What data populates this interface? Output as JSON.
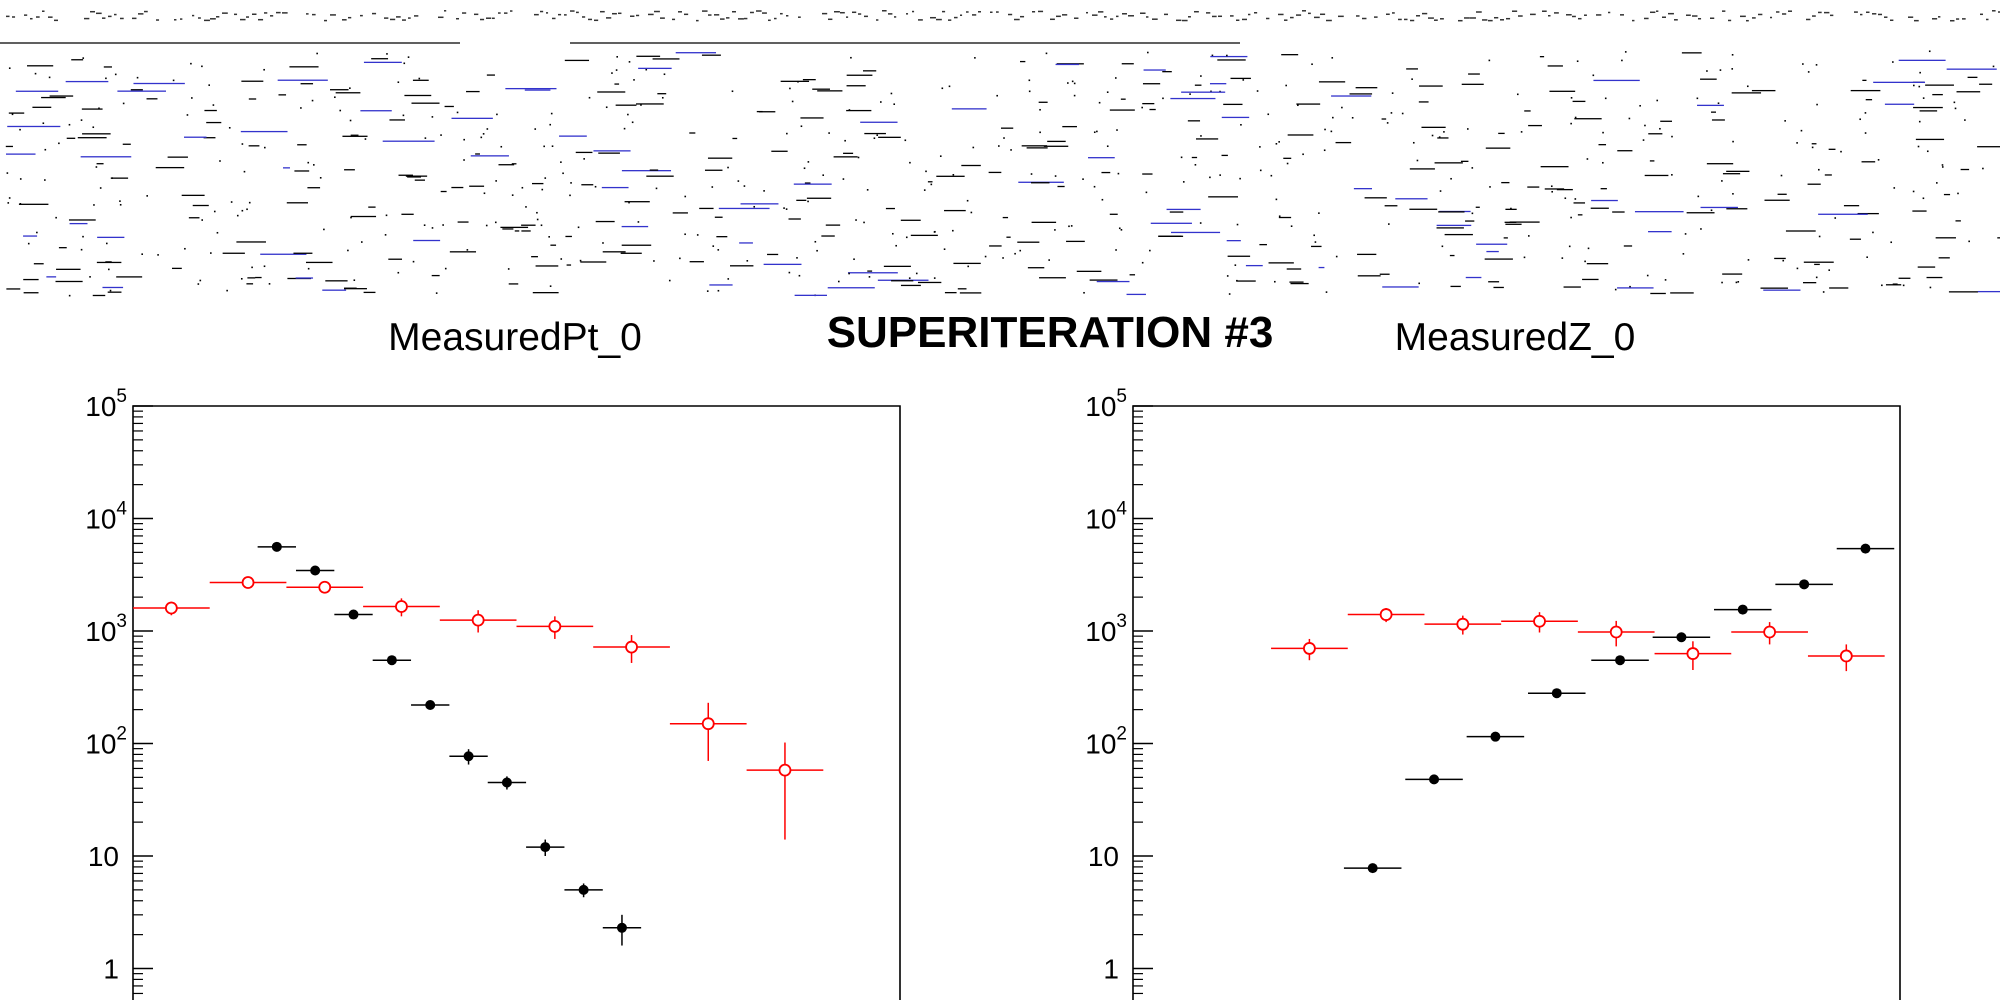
{
  "page_title": "SUPERITERATION #3",
  "colors": {
    "reco": "#000000",
    "measured": "#ff0000",
    "strip_blue": "#3333cc"
  },
  "chart_data": [
    {
      "type": "scatter",
      "title": "MeasuredPt_0",
      "yscale": "log",
      "ylim": [
        0.2,
        100000
      ],
      "xlim": [
        0,
        20
      ],
      "y_ticks": [
        {
          "value": 100000,
          "base": "10",
          "exp": "5"
        },
        {
          "value": 10000,
          "base": "10",
          "exp": "4"
        },
        {
          "value": 1000,
          "base": "10",
          "exp": "3"
        },
        {
          "value": 100,
          "base": "10",
          "exp": "2"
        },
        {
          "value": 10,
          "base": "10",
          "exp": ""
        },
        {
          "value": 1,
          "base": "1",
          "exp": ""
        }
      ],
      "series": [
        {
          "marker": "filled-circle",
          "color": "#000000",
          "points": [
            {
              "x": 3.75,
              "y": 5600,
              "xerr": 0.5,
              "yerr": 0
            },
            {
              "x": 4.75,
              "y": 3450,
              "xerr": 0.5,
              "yerr": 0
            },
            {
              "x": 5.75,
              "y": 1400,
              "xerr": 0.5,
              "yerr": 0
            },
            {
              "x": 6.75,
              "y": 550,
              "xerr": 0.5,
              "yerr": 0
            },
            {
              "x": 7.75,
              "y": 220,
              "xerr": 0.5,
              "yerr": 0
            },
            {
              "x": 8.75,
              "y": 77,
              "xerr": 0.5,
              "yerr": 12
            },
            {
              "x": 9.75,
              "y": 45,
              "xerr": 0.5,
              "yerr": 6
            },
            {
              "x": 10.75,
              "y": 12,
              "xerr": 0.5,
              "yerr": 2
            },
            {
              "x": 11.75,
              "y": 5,
              "xerr": 0.5,
              "yerr": 0.7
            },
            {
              "x": 12.75,
              "y": 2.3,
              "xerr": 0.5,
              "yerr": 0.7
            }
          ]
        },
        {
          "marker": "open-circle",
          "color": "#ff0000",
          "points": [
            {
              "x": 1,
              "y": 1600,
              "xerr": 1,
              "yerr": 220
            },
            {
              "x": 3,
              "y": 2700,
              "xerr": 1,
              "yerr": 220
            },
            {
              "x": 5,
              "y": 2450,
              "xerr": 1,
              "yerr": 220
            },
            {
              "x": 7,
              "y": 1650,
              "xerr": 1,
              "yerr": 300
            },
            {
              "x": 9,
              "y": 1250,
              "xerr": 1,
              "yerr": 280
            },
            {
              "x": 11,
              "y": 1100,
              "xerr": 1,
              "yerr": 250
            },
            {
              "x": 13,
              "y": 720,
              "xerr": 1,
              "yerr": 200
            },
            {
              "x": 15,
              "y": 150,
              "xerr": 1,
              "yerr": 80
            },
            {
              "x": 17,
              "y": 58,
              "xerr": 1,
              "yerr": 44
            }
          ]
        }
      ]
    },
    {
      "type": "scatter",
      "title": "MeasuredZ_0",
      "yscale": "log",
      "ylim": [
        0.2,
        100000
      ],
      "xlim": [
        0,
        20
      ],
      "y_ticks": [
        {
          "value": 100000,
          "base": "10",
          "exp": "5"
        },
        {
          "value": 10000,
          "base": "10",
          "exp": "4"
        },
        {
          "value": 1000,
          "base": "10",
          "exp": "3"
        },
        {
          "value": 100,
          "base": "10",
          "exp": "2"
        },
        {
          "value": 10,
          "base": "10",
          "exp": ""
        },
        {
          "value": 1,
          "base": "1",
          "exp": ""
        }
      ],
      "series": [
        {
          "marker": "filled-circle",
          "color": "#000000",
          "points": [
            {
              "x": 6.25,
              "y": 7.8,
              "xerr": 0.75,
              "yerr": 0
            },
            {
              "x": 7.85,
              "y": 48,
              "xerr": 0.75,
              "yerr": 0
            },
            {
              "x": 9.45,
              "y": 115,
              "xerr": 0.75,
              "yerr": 0
            },
            {
              "x": 11.05,
              "y": 280,
              "xerr": 0.75,
              "yerr": 0
            },
            {
              "x": 12.7,
              "y": 550,
              "xerr": 0.75,
              "yerr": 0
            },
            {
              "x": 14.3,
              "y": 880,
              "xerr": 0.75,
              "yerr": 0
            },
            {
              "x": 15.9,
              "y": 1550,
              "xerr": 0.75,
              "yerr": 0
            },
            {
              "x": 17.5,
              "y": 2600,
              "xerr": 0.75,
              "yerr": 0
            },
            {
              "x": 19.1,
              "y": 5400,
              "xerr": 0.75,
              "yerr": 0
            }
          ]
        },
        {
          "marker": "open-circle",
          "color": "#ff0000",
          "points": [
            {
              "x": 4.6,
              "y": 700,
              "xerr": 1,
              "yerr": 150
            },
            {
              "x": 6.6,
              "y": 1400,
              "xerr": 1,
              "yerr": 200
            },
            {
              "x": 8.6,
              "y": 1150,
              "xerr": 1,
              "yerr": 220
            },
            {
              "x": 10.6,
              "y": 1220,
              "xerr": 1,
              "yerr": 250
            },
            {
              "x": 12.6,
              "y": 980,
              "xerr": 1,
              "yerr": 250
            },
            {
              "x": 14.6,
              "y": 630,
              "xerr": 1,
              "yerr": 180
            },
            {
              "x": 16.6,
              "y": 980,
              "xerr": 1,
              "yerr": 220
            },
            {
              "x": 18.6,
              "y": 600,
              "xerr": 1,
              "yerr": 160
            }
          ]
        }
      ]
    }
  ]
}
